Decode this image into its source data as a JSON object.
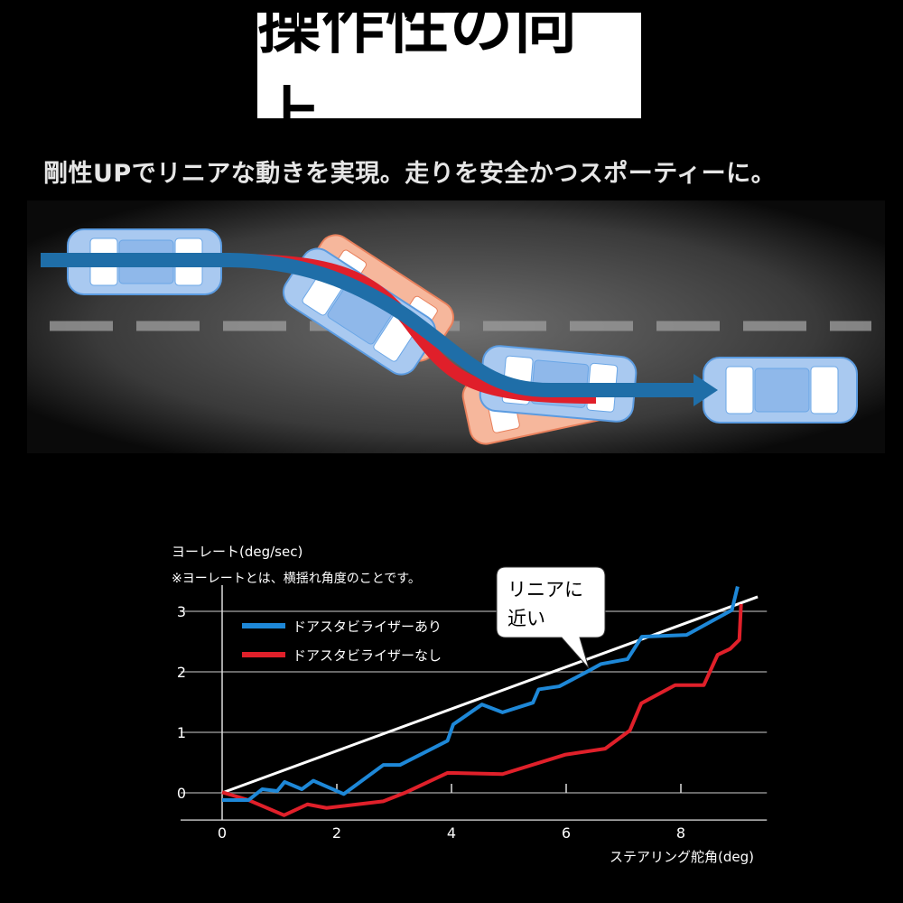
{
  "header": {
    "title": "操作性の向上",
    "subtitle": "剛性UPでリニアな動きを実現。走りを安全かつスポーティーに。"
  },
  "illustration": {
    "colors": {
      "with_stabilizer": "#1f78b4",
      "without_stabilizer": "#e01f2a",
      "car_blue": "#a9c9f0",
      "car_red": "#f4a486"
    }
  },
  "chart_data": {
    "type": "line",
    "ylabel": "ヨーレート(deg/sec)",
    "note": "※ヨーレートとは、横揺れ角度のことです。",
    "xlabel": "ステアリング舵角(deg)",
    "xlim": [
      0,
      9.5
    ],
    "ylim": [
      -0.45,
      3.35
    ],
    "xticks": [
      0,
      2,
      4,
      6,
      8
    ],
    "yticks": [
      0,
      1,
      2,
      3
    ],
    "grid": "horizontal",
    "legend": "top-left",
    "callout": {
      "line1": "リニアに",
      "line2": "近い"
    },
    "reference_line": {
      "x": [
        0,
        9.34
      ],
      "y": [
        0,
        3.24
      ],
      "color": "#ffffff"
    },
    "series": [
      {
        "name": "ドアスタビライザーあり",
        "color": "#1e88d8",
        "x": [
          0,
          0.46,
          0.7,
          0.96,
          1.09,
          1.39,
          1.59,
          2.12,
          2.81,
          3.1,
          3.93,
          4.03,
          4.53,
          4.89,
          5.42,
          5.52,
          5.88,
          6.38,
          6.61,
          7.07,
          7.32,
          8.1,
          8.89,
          8.99
        ],
        "y": [
          -0.12,
          -0.12,
          0.06,
          0.03,
          0.18,
          0.06,
          0.2,
          -0.02,
          0.46,
          0.46,
          0.86,
          1.13,
          1.46,
          1.33,
          1.49,
          1.71,
          1.76,
          2.01,
          2.13,
          2.21,
          2.58,
          2.61,
          3.02,
          3.41
        ]
      },
      {
        "name": "ドアスタビライザーなし",
        "color": "#e0202a",
        "x": [
          0,
          0.46,
          1.08,
          1.49,
          1.82,
          2.81,
          3.21,
          3.93,
          4.89,
          5.98,
          6.68,
          7.11,
          7.31,
          7.9,
          8.4,
          8.64,
          8.86,
          9.02,
          9.05
        ],
        "y": [
          0.01,
          -0.12,
          -0.37,
          -0.19,
          -0.25,
          -0.14,
          0.01,
          0.33,
          0.31,
          0.63,
          0.73,
          1.03,
          1.48,
          1.78,
          1.78,
          2.28,
          2.38,
          2.53,
          3.12
        ]
      }
    ]
  }
}
